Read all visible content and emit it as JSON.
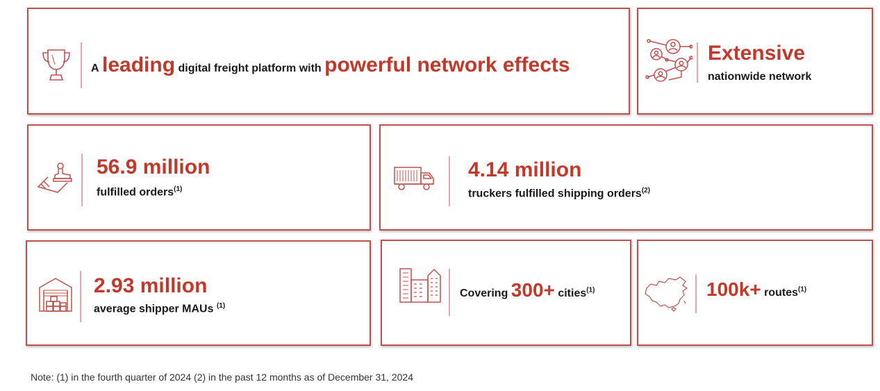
{
  "hero": {
    "prefix": "A",
    "word_leading": "leading",
    "middle": "digital freight platform with",
    "phrase_network": "powerful network effects"
  },
  "network": {
    "title": "Extensive",
    "subtitle": "nationwide network"
  },
  "orders": {
    "value": "56.9 million",
    "label": "fulfilled orders",
    "footnote": "(1)"
  },
  "truckers": {
    "value": "4.14 million",
    "label": "truckers fulfilled shipping orders",
    "footnote": "(2)"
  },
  "shippers": {
    "value": "2.93 million",
    "label": "average shipper MAUs ",
    "footnote": "(1)"
  },
  "cities": {
    "prefix": "Covering",
    "value": "300+",
    "suffix": "cities",
    "footnote": "(1)"
  },
  "routes": {
    "value": "100k+",
    "suffix": "routes",
    "footnote": "(1)"
  },
  "note": "Note: (1) in the fourth quarter of 2024 (2) in the past 12 months as of December 31, 2024",
  "colors": {
    "accent": "#c0392b",
    "border": "#c0504d",
    "divider": "#e2a9a8"
  },
  "icons": [
    "trophy-icon",
    "network-people-icon",
    "stamp-icon",
    "truck-icon",
    "warehouse-icon",
    "buildings-icon",
    "china-map-icon"
  ]
}
